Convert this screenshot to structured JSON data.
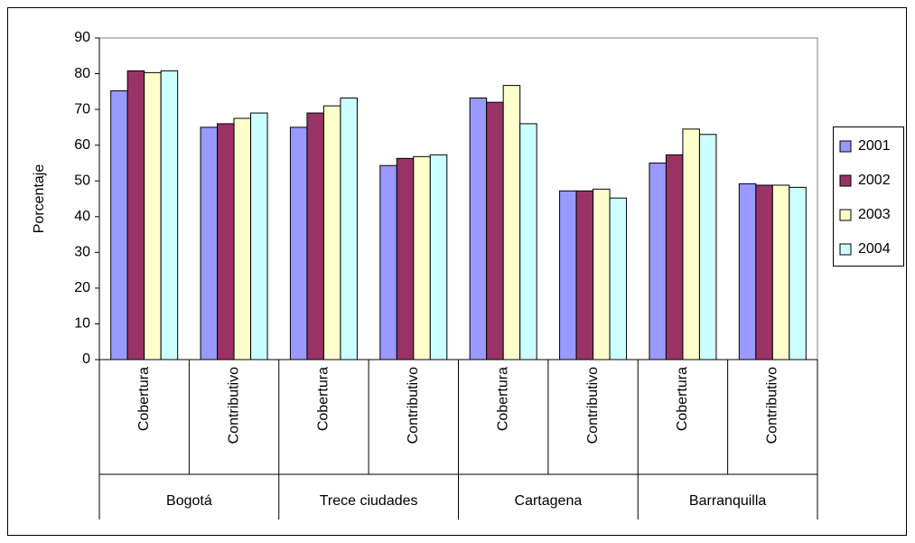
{
  "chart_data": {
    "type": "bar",
    "y_label": "Porcentaje",
    "categories": [
      "Cobertura",
      "Contributivo",
      "Cobertura",
      "Contributivo",
      "Cobertura",
      "Contributivo",
      "Cobertura",
      "Contributivo"
    ],
    "groups": [
      "Bogotá",
      "Trece ciudades",
      "Cartagena",
      "Barranquilla"
    ],
    "series": [
      {
        "name": "2001",
        "color": "#9999ff",
        "values": [
          75.2,
          65,
          65,
          54.3,
          73.2,
          47.2,
          55,
          49.2
        ]
      },
      {
        "name": "2002",
        "color": "#993366",
        "values": [
          80.8,
          66,
          69,
          56.3,
          72,
          47.2,
          57.3,
          48.8
        ]
      },
      {
        "name": "2003",
        "color": "#ffffcc",
        "values": [
          80.3,
          67.5,
          71,
          56.8,
          76.7,
          47.7,
          64.5,
          48.8
        ]
      },
      {
        "name": "2004",
        "color": "#ccffff",
        "values": [
          80.8,
          69,
          73.2,
          57.3,
          66,
          45.2,
          63,
          48.2
        ]
      }
    ],
    "ylim": [
      0,
      90
    ],
    "yticks": [
      0,
      10,
      20,
      30,
      40,
      50,
      60,
      70,
      80,
      90
    ],
    "grid": false,
    "legend": "right"
  }
}
